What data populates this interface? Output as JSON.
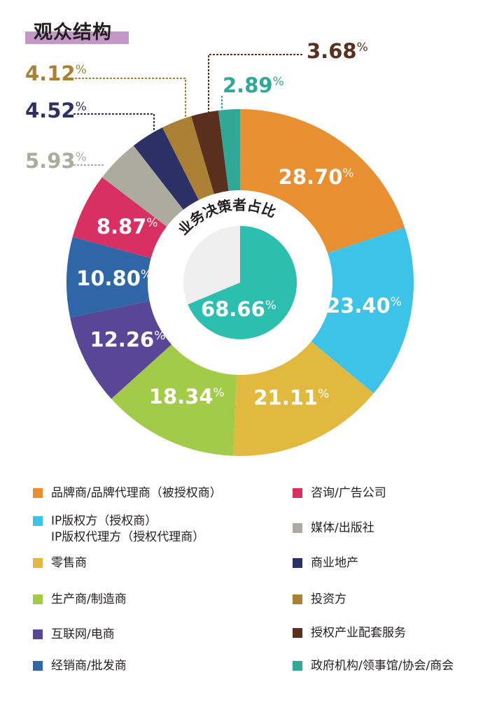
{
  "title": "观众结构",
  "chart_data": {
    "type": "pie",
    "title": "观众结构",
    "categories": [
      "品牌商/品牌代理商（被授权商）",
      "IP版权方（授权商）\nIP版权代理方（授权代理商）",
      "零售商",
      "生产商/制造商",
      "互联网/电商",
      "经销商/批发商",
      "咨询/广告公司",
      "媒体/出版社",
      "商业地产",
      "投资方",
      "授权产业配套服务",
      "政府机构/领事馆/协会/商会"
    ],
    "values": [
      28.7,
      23.4,
      21.11,
      18.34,
      12.26,
      10.8,
      8.87,
      5.93,
      4.52,
      4.12,
      3.68,
      2.89
    ],
    "labels": [
      "28.70",
      "23.40",
      "21.11",
      "18.34",
      "12.26",
      "10.80",
      "8.87",
      "5.93",
      "4.52",
      "4.12",
      "3.68",
      "2.89"
    ],
    "colors": [
      "#E88F32",
      "#3EC3E8",
      "#E2B93F",
      "#A1CB48",
      "#5A4696",
      "#2F66A8",
      "#D93063",
      "#ADAA9E",
      "#2B3165",
      "#AB8035",
      "#5A2F1E",
      "#30A898"
    ],
    "percent_sign": "%",
    "inner": {
      "title": "业务决策者占比",
      "value": 68.66,
      "label": "68.66",
      "colors": [
        "#2CBEAE",
        "#EFEFEF"
      ]
    }
  },
  "legend": [
    {
      "lines": [
        "品牌商/品牌代理商（被授权商）"
      ]
    },
    {
      "lines": [
        "IP版权方（授权商）",
        "IP版权代理方（授权代理商）"
      ]
    },
    {
      "lines": [
        "零售商"
      ]
    },
    {
      "lines": [
        "生产商/制造商"
      ]
    },
    {
      "lines": [
        "互联网/电商"
      ]
    },
    {
      "lines": [
        "经销商/批发商"
      ]
    },
    {
      "lines": [
        "咨询/广告公司"
      ]
    },
    {
      "lines": [
        "媒体/出版社"
      ]
    },
    {
      "lines": [
        "商业地产"
      ]
    },
    {
      "lines": [
        "投资方"
      ]
    },
    {
      "lines": [
        "授权产业配套服务"
      ]
    },
    {
      "lines": [
        "政府机构/领事馆/协会/商会"
      ]
    }
  ]
}
